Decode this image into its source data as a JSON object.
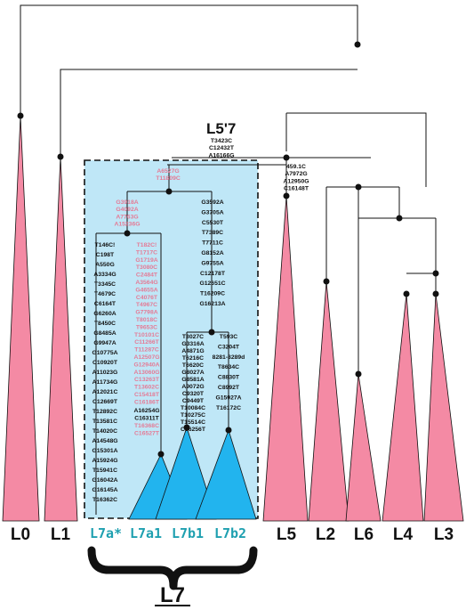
{
  "colors": {
    "pink_clade": "#f48aa4",
    "blue_clade": "#22b4ee",
    "box_fill": "#bfe7f7",
    "pink_text": "#e47b96",
    "teal_text": "#1fa0b0"
  },
  "headings": {
    "l57": "L5'7",
    "l7": "L7"
  },
  "leaves": [
    "L0",
    "L1",
    "L7a*",
    "L7a1",
    "L7b1",
    "L7b2",
    "L5",
    "L2",
    "L6",
    "L4",
    "L3"
  ],
  "mutations": {
    "l57": [
      "T3423C",
      "C12432T",
      "A16166G"
    ],
    "l7_root": [
      "A6527G",
      "T11809C"
    ],
    "l5": [
      "459.1C",
      "A7972G",
      "A12950G",
      "C16148T"
    ],
    "l7a": [
      "G3918A",
      "G4092A",
      "A7763G",
      "A15236G"
    ],
    "l7b": [
      "G3592A",
      "G3705A",
      "C5530T",
      "T7389C",
      "T7711C",
      "G8152A",
      "G9755A",
      "C12178T",
      "G12651C",
      "T16209C",
      "G16213A"
    ],
    "l7a_star": [
      "T146C!",
      "C198T",
      "A550G",
      "A3334G",
      "T3345C",
      "T4679C",
      "C6164T",
      "G6260A",
      "T8450C",
      "G8485A",
      "G9947A",
      "G10775A",
      "C10920T",
      "A11023G",
      "A11734G",
      "A12021C",
      "C12669T",
      "T12892C",
      "T13581C",
      "T14020C",
      "A14548G",
      "G15301A",
      "A15924G",
      "T15941C",
      "G16042A",
      "G16145A",
      "T16362C"
    ],
    "l7a1": [
      "T182C!",
      "T1717C",
      "G1719A",
      "T3080C",
      "C2484T",
      "A3564G",
      "G4655A",
      "C4076T",
      "T4967C",
      "G7798A",
      "T8018C",
      "T9653C",
      "T10101C",
      "C11266T",
      "T11287C",
      "A12507G",
      "G12940A",
      "A13060G",
      "C13263T",
      "T13602C",
      "C15418T",
      "C16186T"
    ],
    "l7a1_black": [
      "A16254G",
      "C16311T"
    ],
    "l7a1_tail": [
      "T16368C",
      "C16527T"
    ],
    "l7b1": [
      "T3027C",
      "G3316A",
      "A4871G",
      "T6216C",
      "T6620C",
      "G8027A",
      "G8581A",
      "A9072G",
      "C9320T",
      "C9449T",
      "T10084C",
      "T10275C",
      "T15514C",
      "C16256T"
    ],
    "l7b2": [
      "T593C",
      "C3204T",
      "8281-8289d",
      "T8634C",
      "C8830T",
      "C8992T",
      "G15927A",
      "T16172C"
    ]
  }
}
